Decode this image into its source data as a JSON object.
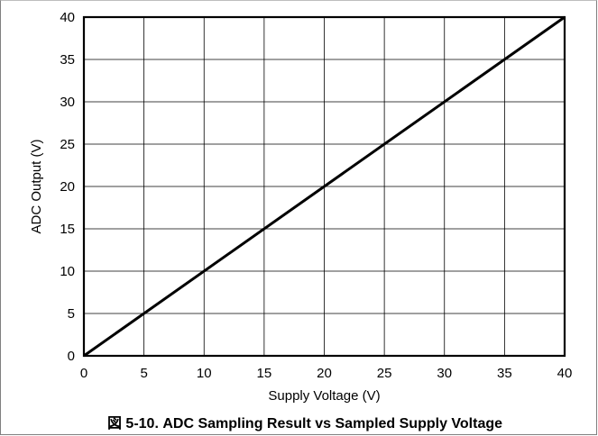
{
  "chart_data": {
    "type": "line",
    "title": "",
    "xlabel": "Supply Voltage (V)",
    "ylabel": "ADC Output (V)",
    "xlim": [
      0,
      40
    ],
    "ylim": [
      0,
      40
    ],
    "xticks": [
      "0",
      "5",
      "10",
      "15",
      "20",
      "25",
      "30",
      "35",
      "40"
    ],
    "yticks": [
      "0",
      "5",
      "10",
      "15",
      "20",
      "25",
      "30",
      "35",
      "40"
    ],
    "grid": true,
    "series": [
      {
        "x": [
          0,
          40
        ],
        "y": [
          0,
          40
        ],
        "color": "#000000"
      }
    ],
    "caption": "図 5-10. ADC Sampling Result vs Sampled Supply Voltage"
  }
}
